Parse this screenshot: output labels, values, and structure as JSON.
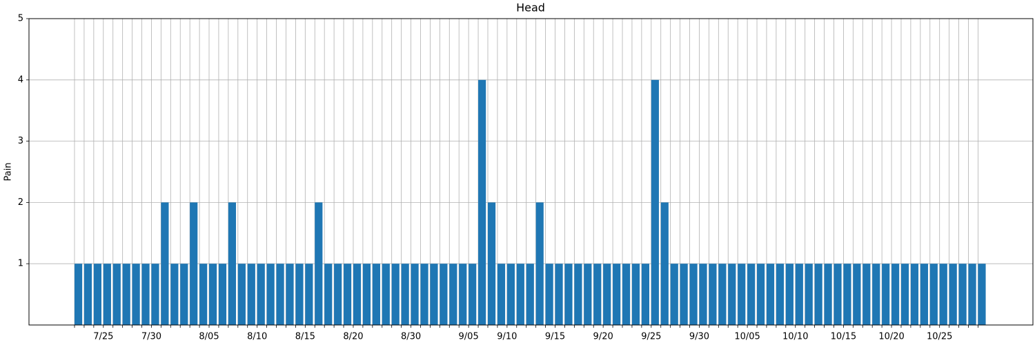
{
  "chart_data": {
    "type": "bar",
    "title": "Head",
    "y_label": "Pain",
    "categories": [
      null,
      null,
      null,
      "7/25",
      null,
      null,
      null,
      null,
      "7/30",
      null,
      null,
      null,
      null,
      null,
      "8/05",
      null,
      null,
      null,
      null,
      "8/10",
      null,
      null,
      null,
      null,
      "8/15",
      null,
      null,
      null,
      null,
      "8/20",
      null,
      null,
      null,
      null,
      null,
      "8/30",
      null,
      null,
      null,
      null,
      null,
      "9/05",
      null,
      null,
      null,
      "9/10",
      null,
      null,
      null,
      null,
      "9/15",
      null,
      null,
      null,
      null,
      "9/20",
      null,
      null,
      null,
      null,
      "9/25",
      null,
      null,
      null,
      null,
      "9/30",
      null,
      null,
      null,
      null,
      "10/05",
      null,
      null,
      null,
      null,
      "10/10",
      null,
      null,
      null,
      null,
      "10/15",
      null,
      null,
      null,
      null,
      "10/20",
      null,
      null,
      null,
      null,
      "10/25",
      null,
      null,
      null,
      null
    ],
    "values": [
      1,
      1,
      1,
      1,
      1,
      1,
      1,
      1,
      1,
      2,
      1,
      1,
      2,
      1,
      1,
      1,
      2,
      1,
      1,
      1,
      1,
      1,
      1,
      1,
      1,
      2,
      1,
      1,
      1,
      1,
      1,
      1,
      1,
      1,
      1,
      1,
      1,
      1,
      1,
      1,
      1,
      1,
      4,
      2,
      1,
      1,
      1,
      1,
      2,
      1,
      1,
      1,
      1,
      1,
      1,
      1,
      1,
      1,
      1,
      1,
      4,
      2,
      1,
      1,
      1,
      1,
      1,
      1,
      1,
      1,
      1,
      1,
      1,
      1,
      1,
      1,
      1,
      1,
      1,
      1,
      1,
      1,
      1,
      1,
      1,
      1,
      1,
      1,
      1,
      1,
      1,
      1,
      1,
      1,
      1
    ],
    "color": "#1f77b4",
    "ylim": [
      0,
      5
    ],
    "yticks": [
      1,
      2,
      3,
      4,
      5
    ],
    "grid": true
  }
}
